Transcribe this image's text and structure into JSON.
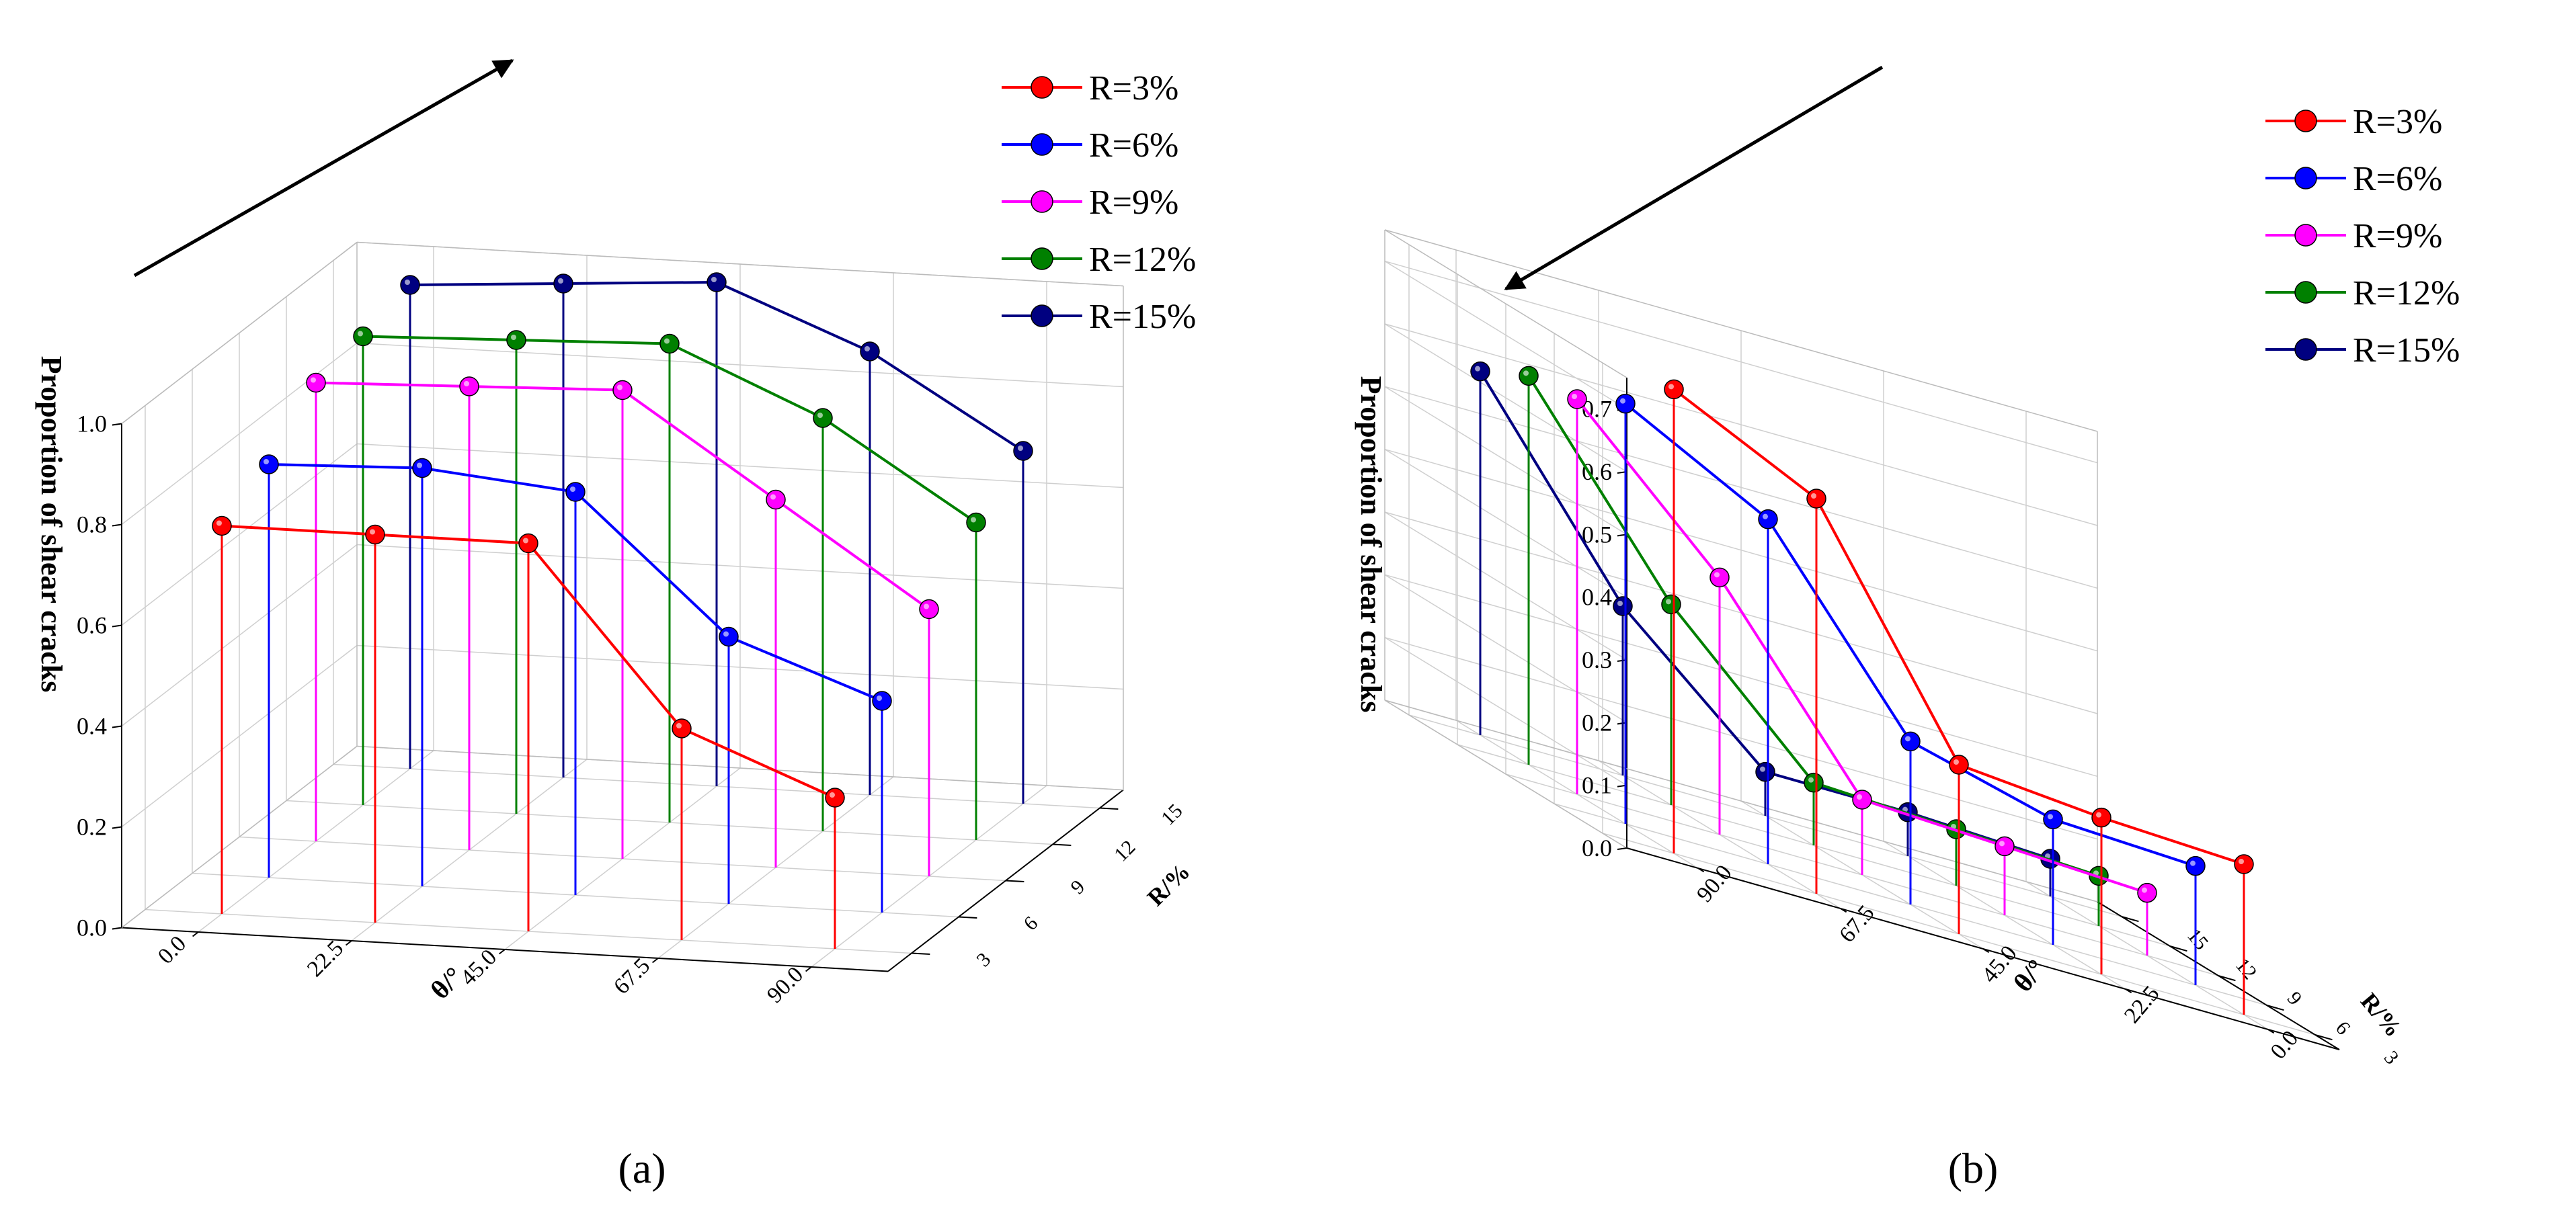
{
  "chart_data": [
    {
      "type": "3d-bar-line",
      "panel_label": "(a)",
      "zlabel": "Proportion of shear cracks",
      "xlabel": "θ/°",
      "ylabel": "R/%",
      "xticks": [
        "0.0",
        "22.5",
        "45.0",
        "67.5",
        "90.0"
      ],
      "yticks": [
        "3",
        "6",
        "9",
        "12",
        "15"
      ],
      "zticks": [
        "0.0",
        "0.2",
        "0.4",
        "0.6",
        "0.8",
        "1.0"
      ],
      "zlim": [
        0,
        1
      ],
      "x": [
        0.0,
        22.5,
        45.0,
        67.5,
        90.0
      ],
      "arrow_direction": "increasing R",
      "legend": [
        "R=3%",
        "R=6%",
        "R=9%",
        "R=12%",
        "R=15%"
      ],
      "series": [
        {
          "name": "R=3%",
          "r": 3,
          "color": "#ff0000",
          "values": [
            0.77,
            0.77,
            0.77,
            0.42,
            0.3
          ]
        },
        {
          "name": "R=6%",
          "r": 6,
          "color": "#0000ff",
          "values": [
            0.82,
            0.83,
            0.8,
            0.53,
            0.42
          ]
        },
        {
          "name": "R=9%",
          "r": 9,
          "color": "#ff00ff",
          "values": [
            0.91,
            0.92,
            0.93,
            0.73,
            0.53
          ]
        },
        {
          "name": "R=12%",
          "r": 12,
          "color": "#008000",
          "values": [
            0.93,
            0.94,
            0.95,
            0.82,
            0.63
          ]
        },
        {
          "name": "R=15%",
          "r": 15,
          "color": "#000080",
          "values": [
            0.96,
            0.98,
            1.0,
            0.88,
            0.7
          ]
        }
      ]
    },
    {
      "type": "3d-bar-line",
      "panel_label": "(b)",
      "zlabel": "Proportion of shear cracks",
      "xlabel": "θ/°",
      "ylabel": "R/%",
      "xticks": [
        "90.0",
        "67.5",
        "45.0",
        "22.5",
        "0.0"
      ],
      "yticks": [
        "3",
        "6",
        "9",
        "12",
        "15"
      ],
      "zticks": [
        "0.0",
        "0.1",
        "0.2",
        "0.3",
        "0.4",
        "0.5",
        "0.6",
        "0.7"
      ],
      "zlim": [
        0,
        0.75
      ],
      "x": [
        90.0,
        67.5,
        45.0,
        22.5,
        0.0
      ],
      "arrow_direction": "increasing R",
      "legend": [
        "R=3%",
        "R=6%",
        "R=9%",
        "R=12%",
        "R=15%"
      ],
      "series": [
        {
          "name": "R=3%",
          "r": 3,
          "color": "#ff0000",
          "values": [
            0.74,
            0.63,
            0.27,
            0.25,
            0.24
          ]
        },
        {
          "name": "R=6%",
          "r": 6,
          "color": "#0000ff",
          "values": [
            0.67,
            0.55,
            0.26,
            0.2,
            0.19
          ]
        },
        {
          "name": "R=9%",
          "r": 9,
          "color": "#ff00ff",
          "values": [
            0.63,
            0.41,
            0.12,
            0.11,
            0.1
          ]
        },
        {
          "name": "R=12%",
          "r": 12,
          "color": "#008000",
          "values": [
            0.62,
            0.32,
            0.1,
            0.09,
            0.08
          ]
        },
        {
          "name": "R=15%",
          "r": 15,
          "color": "#000080",
          "values": [
            0.58,
            0.27,
            0.07,
            0.07,
            0.06
          ]
        }
      ]
    }
  ]
}
